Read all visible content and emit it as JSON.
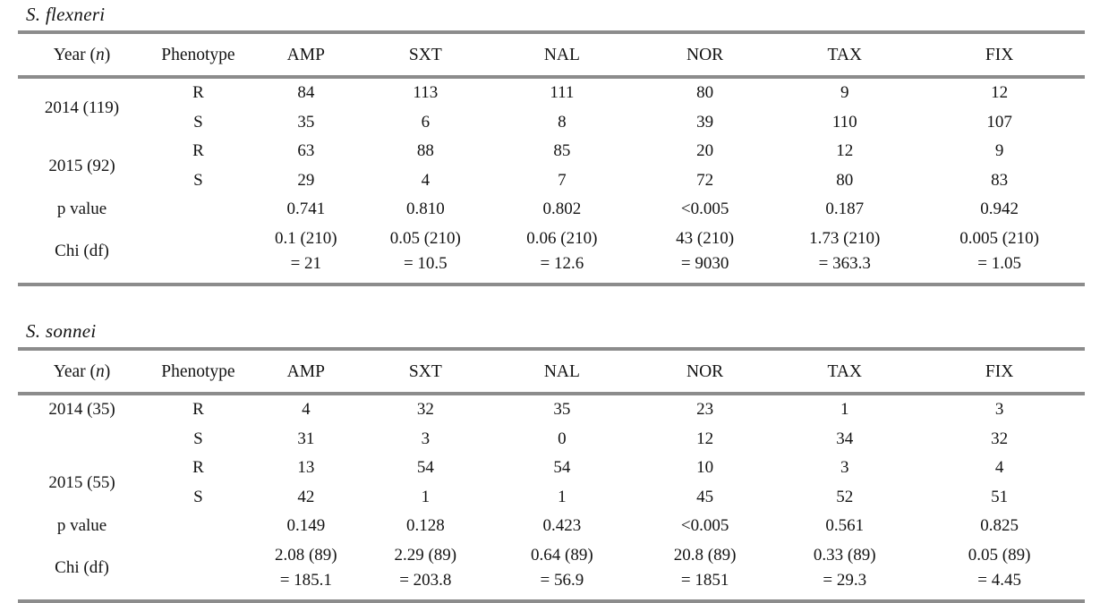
{
  "meta": {
    "rule_color": "#8c8c8c",
    "text_color": "#131313",
    "background": "#ffffff"
  },
  "tables": [
    {
      "title": "S. flexneri",
      "header": {
        "year_pre": "Year (",
        "year_n": "n",
        "year_post": ")",
        "phenotype": "Phenotype",
        "drugs": [
          "AMP",
          "SXT",
          "NAL",
          "NOR",
          "TAX",
          "FIX"
        ]
      },
      "groups": [
        {
          "year": "2014 (119)",
          "rows": [
            {
              "phenotype": "R",
              "values": [
                "84",
                "113",
                "111",
                "80",
                "9",
                "12"
              ]
            },
            {
              "phenotype": "S",
              "values": [
                "35",
                "6",
                "8",
                "39",
                "110",
                "107"
              ]
            }
          ]
        },
        {
          "year": "2015 (92)",
          "rows": [
            {
              "phenotype": "R",
              "values": [
                "63",
                "88",
                "85",
                "20",
                "12",
                "9"
              ]
            },
            {
              "phenotype": "S",
              "values": [
                "29",
                "4",
                "7",
                "72",
                "80",
                "83"
              ]
            }
          ]
        }
      ],
      "p_row": {
        "label": "p value",
        "values": [
          "0.741",
          "0.810",
          "0.802",
          "<0.005",
          "0.187",
          "0.942"
        ]
      },
      "chi_row": {
        "label": "Chi (df)",
        "values": [
          "0.1 (210)\n= 21",
          "0.05 (210)\n= 10.5",
          "0.06 (210)\n= 12.6",
          "43 (210)\n= 9030",
          "1.73 (210)\n= 363.3",
          "0.005 (210)\n= 1.05"
        ]
      }
    },
    {
      "title": "S. sonnei",
      "header": {
        "year_pre": "Year (",
        "year_n": "n",
        "year_post": ")",
        "phenotype": "Phenotype",
        "drugs": [
          "AMP",
          "SXT",
          "NAL",
          "NOR",
          "TAX",
          "FIX"
        ]
      },
      "groups": [
        {
          "year": "2014 (35)",
          "rows": [
            {
              "phenotype": "R",
              "values": [
                "4",
                "32",
                "35",
                "23",
                "1",
                "3"
              ]
            },
            {
              "phenotype": "S",
              "values": [
                "31",
                "3",
                "0",
                "12",
                "34",
                "32"
              ]
            }
          ]
        },
        {
          "year": "2015 (55)",
          "rows": [
            {
              "phenotype": "R",
              "values": [
                "13",
                "54",
                "54",
                "10",
                "3",
                "4"
              ]
            },
            {
              "phenotype": "S",
              "values": [
                "42",
                "1",
                "1",
                "45",
                "52",
                "51"
              ]
            }
          ]
        }
      ],
      "p_row": {
        "label": "p value",
        "values": [
          "0.149",
          "0.128",
          "0.423",
          "<0.005",
          "0.561",
          "0.825"
        ]
      },
      "chi_row": {
        "label": "Chi (df)",
        "values": [
          "2.08 (89)\n= 185.1",
          "2.29 (89)\n= 203.8",
          "0.64 (89)\n= 56.9",
          "20.8 (89)\n= 1851",
          "0.33 (89)\n= 29.3",
          "0.05 (89)\n= 4.45"
        ]
      }
    }
  ]
}
